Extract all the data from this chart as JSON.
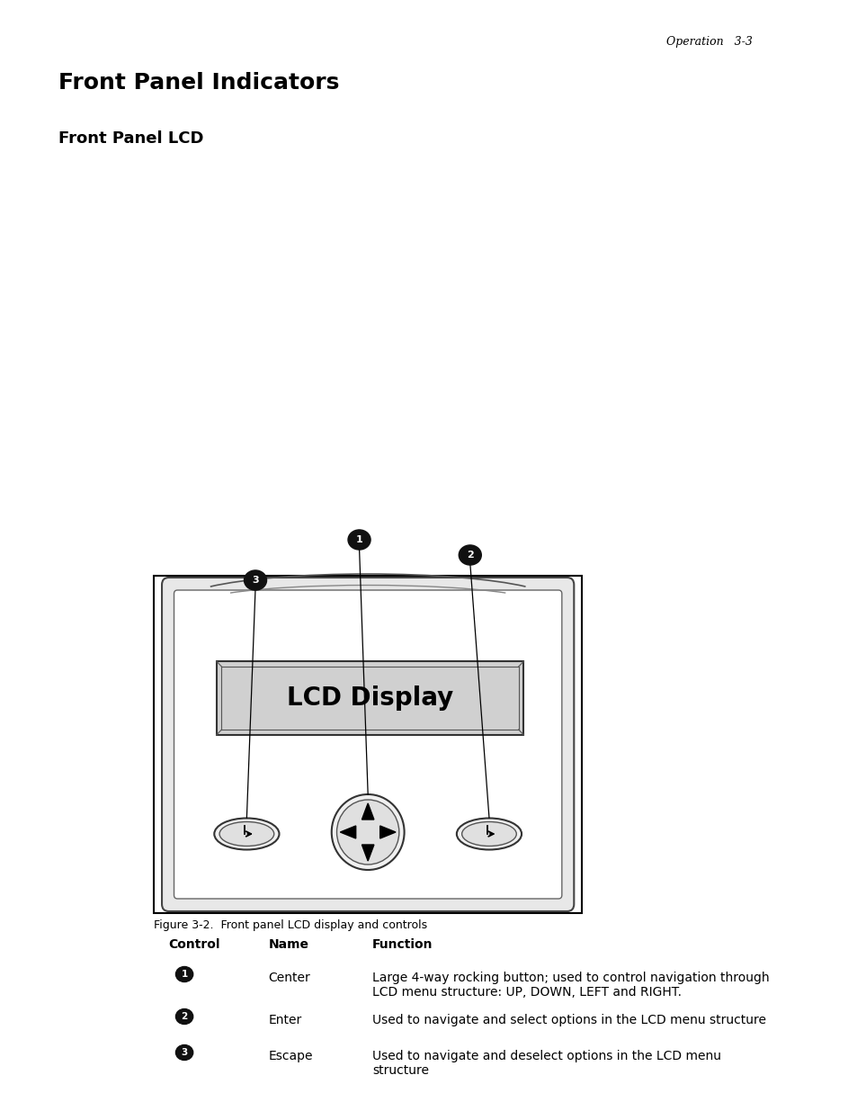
{
  "page_header": "Operation   3-3",
  "title": "Front Panel Indicators",
  "subtitle": "Front Panel LCD",
  "figure_caption": "Figure 3-2.  Front panel LCD display and controls",
  "table_headers": [
    "Control",
    "Name",
    "Function"
  ],
  "table_rows": [
    {
      "control_num": "1",
      "name": "Center",
      "function": "Large 4-way rocking button; used to control navigation through\nLCD menu structure: UP, DOWN, LEFT and RIGHT."
    },
    {
      "control_num": "2",
      "name": "Enter",
      "function": "Used to navigate and select options in the LCD menu structure"
    },
    {
      "control_num": "3",
      "name": "Escape",
      "function": "Used to navigate and deselect options in the LCD menu\nstructure"
    }
  ],
  "bg_color": "#ffffff",
  "text_color": "#000000",
  "lcd_display_text": "LCD Display",
  "lcd_bg_color": "#d0d0d0",
  "figure_border_color": "#000000"
}
